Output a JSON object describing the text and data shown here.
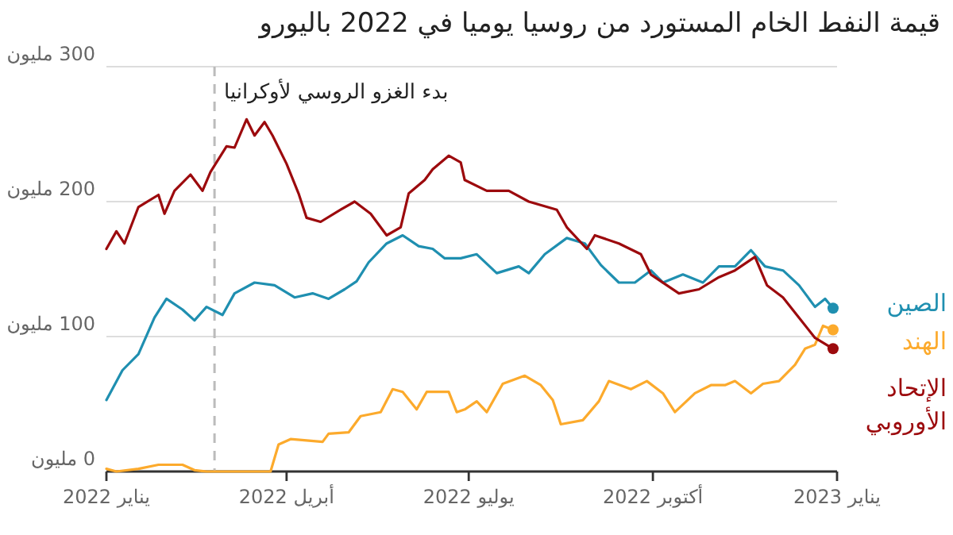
{
  "chart_data": {
    "type": "line",
    "title": "قيمة النفط الخام المستورد من روسيا يوميا في 2022 باليورو",
    "xlim": [
      "2022-01-01",
      "2023-01-01"
    ],
    "xticks": [
      {
        "value": "2022-01-01",
        "label": "يناير 2022"
      },
      {
        "value": "2022-04-01",
        "label": "أبريل 2022"
      },
      {
        "value": "2022-07-01",
        "label": "يوليو 2022"
      },
      {
        "value": "2022-10-01",
        "label": "أكتوبر 2022"
      },
      {
        "value": "2023-01-01",
        "label": "يناير 2023"
      }
    ],
    "ylim": [
      0,
      300
    ],
    "yticks": [
      {
        "value": 0,
        "label": "0 مليون"
      },
      {
        "value": 100,
        "label": "100 مليون"
      },
      {
        "value": 200,
        "label": "200 مليون"
      },
      {
        "value": 300,
        "label": "300 مليون"
      }
    ],
    "grid": "y",
    "ref_lines": [
      {
        "axis": "x",
        "value": "2022-02-24",
        "label": "بدء الغزو الروسي لأوكرانيا",
        "color": "#bbbbbb",
        "line_style": "dashed"
      }
    ],
    "series": [
      {
        "name": "الصين",
        "color": "#1f8fb0",
        "x": [
          "2022-01-01",
          "2022-01-09",
          "2022-01-17",
          "2022-01-25",
          "2022-01-31",
          "2022-02-08",
          "2022-02-14",
          "2022-02-20",
          "2022-02-28",
          "2022-03-06",
          "2022-03-16",
          "2022-03-26",
          "2022-04-05",
          "2022-04-14",
          "2022-04-22",
          "2022-04-30",
          "2022-05-06",
          "2022-05-12",
          "2022-05-21",
          "2022-05-29",
          "2022-06-06",
          "2022-06-13",
          "2022-06-19",
          "2022-06-27",
          "2022-07-05",
          "2022-07-15",
          "2022-07-26",
          "2022-07-31",
          "2022-08-08",
          "2022-08-19",
          "2022-08-28",
          "2022-09-05",
          "2022-09-14",
          "2022-09-22",
          "2022-09-30",
          "2022-10-06",
          "2022-10-16",
          "2022-10-26",
          "2022-11-03",
          "2022-11-11",
          "2022-11-19",
          "2022-11-26",
          "2022-12-05",
          "2022-12-13",
          "2022-12-21",
          "2022-12-26",
          "2022-12-30"
        ],
        "values": [
          53,
          75,
          87,
          114,
          128,
          120,
          112,
          122,
          116,
          132,
          140,
          138,
          129,
          132,
          128,
          135,
          141,
          155,
          169,
          175,
          167,
          165,
          158,
          158,
          161,
          147,
          152,
          147,
          161,
          173,
          169,
          153,
          140,
          140,
          149,
          140,
          146,
          140,
          152,
          152,
          164,
          152,
          149,
          138,
          122,
          128,
          121
        ]
      },
      {
        "name": "الهند",
        "color": "#fcaa2c",
        "x": [
          "2022-01-01",
          "2022-01-06",
          "2022-01-17",
          "2022-01-27",
          "2022-02-08",
          "2022-02-14",
          "2022-02-20",
          "2022-03-24",
          "2022-03-28",
          "2022-04-03",
          "2022-04-19",
          "2022-04-22",
          "2022-05-02",
          "2022-05-08",
          "2022-05-18",
          "2022-05-24",
          "2022-05-29",
          "2022-06-05",
          "2022-06-10",
          "2022-06-21",
          "2022-06-25",
          "2022-06-29",
          "2022-07-05",
          "2022-07-10",
          "2022-07-18",
          "2022-07-29",
          "2022-08-06",
          "2022-08-12",
          "2022-08-16",
          "2022-08-27",
          "2022-09-04",
          "2022-09-09",
          "2022-09-20",
          "2022-09-28",
          "2022-10-06",
          "2022-10-12",
          "2022-10-22",
          "2022-10-30",
          "2022-11-06",
          "2022-11-11",
          "2022-11-19",
          "2022-11-25",
          "2022-12-03",
          "2022-12-11",
          "2022-12-16",
          "2022-12-21",
          "2022-12-25",
          "2022-12-30"
        ],
        "values": [
          2,
          0,
          2,
          5,
          5,
          1,
          0,
          0,
          20,
          24,
          22,
          28,
          29,
          41,
          44,
          61,
          59,
          46,
          59,
          59,
          44,
          46,
          52,
          44,
          65,
          71,
          64,
          53,
          35,
          38,
          52,
          67,
          61,
          67,
          58,
          44,
          58,
          64,
          64,
          67,
          58,
          65,
          67,
          79,
          91,
          94,
          108,
          105
        ]
      },
      {
        "name": "الإتحاد الأوروبي",
        "color": "#9c0a0d",
        "x": [
          "2022-01-01",
          "2022-01-06",
          "2022-01-10",
          "2022-01-17",
          "2022-01-27",
          "2022-01-30",
          "2022-02-04",
          "2022-02-12",
          "2022-02-18",
          "2022-02-22",
          "2022-03-02",
          "2022-03-06",
          "2022-03-12",
          "2022-03-16",
          "2022-03-21",
          "2022-03-25",
          "2022-04-01",
          "2022-04-07",
          "2022-04-11",
          "2022-04-18",
          "2022-04-28",
          "2022-05-05",
          "2022-05-13",
          "2022-05-21",
          "2022-05-28",
          "2022-06-01",
          "2022-06-09",
          "2022-06-13",
          "2022-06-21",
          "2022-06-27",
          "2022-06-29",
          "2022-07-10",
          "2022-07-21",
          "2022-07-31",
          "2022-08-14",
          "2022-08-19",
          "2022-08-29",
          "2022-09-02",
          "2022-09-14",
          "2022-09-25",
          "2022-09-30",
          "2022-10-14",
          "2022-10-24",
          "2022-11-03",
          "2022-11-11",
          "2022-11-21",
          "2022-11-27",
          "2022-12-05",
          "2022-12-13",
          "2022-12-21",
          "2022-12-30"
        ],
        "values": [
          165,
          178,
          169,
          196,
          205,
          191,
          208,
          220,
          208,
          222,
          241,
          240,
          261,
          249,
          259,
          249,
          228,
          206,
          188,
          185,
          194,
          200,
          191,
          175,
          181,
          206,
          216,
          224,
          234,
          229,
          216,
          208,
          208,
          200,
          194,
          181,
          165,
          175,
          169,
          161,
          146,
          132,
          135,
          144,
          149,
          159,
          138,
          129,
          114,
          99,
          91
        ]
      }
    ]
  }
}
